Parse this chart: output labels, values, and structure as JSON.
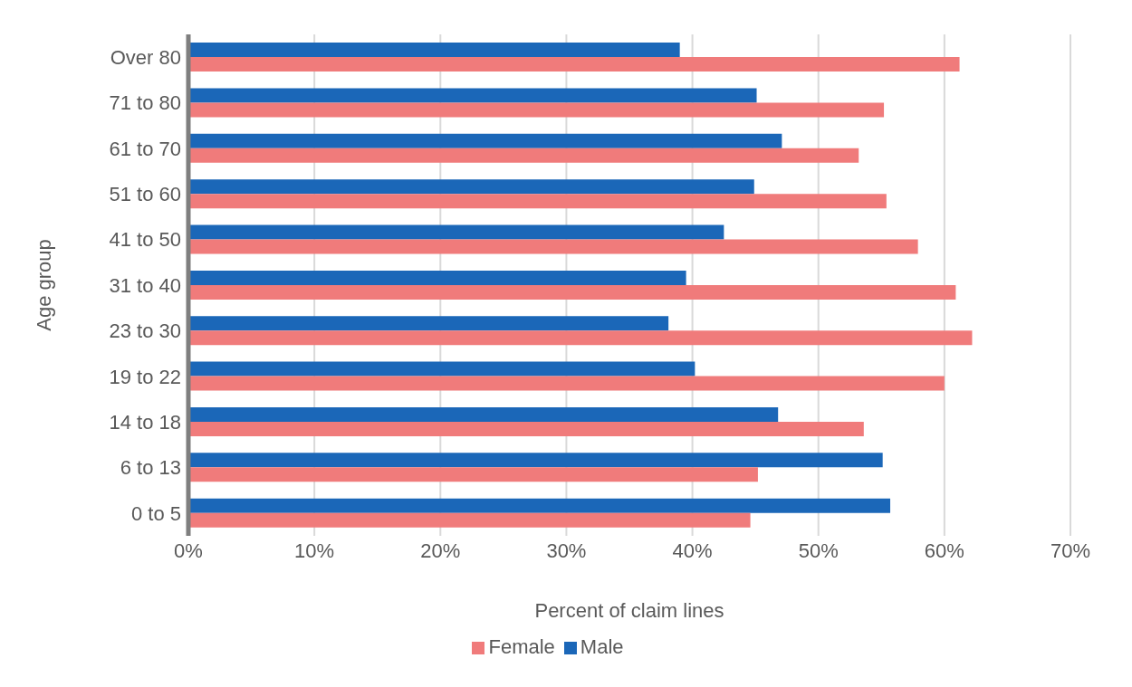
{
  "chart_data": {
    "type": "bar",
    "orientation": "horizontal",
    "xlabel": "Percent of claim lines",
    "ylabel": "Age group",
    "categories": [
      "Over 80",
      "71 to 80",
      "61 to 70",
      "51 to 60",
      "41 to 50",
      "31 to 40",
      "23 to 30",
      "19 to 22",
      "14 to 18",
      "6 to 13",
      "0 to 5"
    ],
    "series": [
      {
        "name": "Male",
        "color": "#1b67b8",
        "values": [
          39.0,
          45.1,
          47.1,
          44.9,
          42.5,
          39.5,
          38.1,
          40.2,
          46.8,
          55.1,
          55.7
        ]
      },
      {
        "name": "Female",
        "color": "#f07b7b",
        "values": [
          61.2,
          55.2,
          53.2,
          55.4,
          57.9,
          60.9,
          62.2,
          60.0,
          53.6,
          45.2,
          44.6
        ]
      }
    ],
    "xlim": [
      0,
      70
    ],
    "xticks": [
      {
        "value": 0,
        "label": "0%"
      },
      {
        "value": 10,
        "label": "10%"
      },
      {
        "value": 20,
        "label": "20%"
      },
      {
        "value": 30,
        "label": "30%"
      },
      {
        "value": 40,
        "label": "40%"
      },
      {
        "value": 50,
        "label": "50%"
      },
      {
        "value": 60,
        "label": "60%"
      },
      {
        "value": 70,
        "label": "70%"
      }
    ],
    "grid": "x",
    "legend": "bottom"
  }
}
